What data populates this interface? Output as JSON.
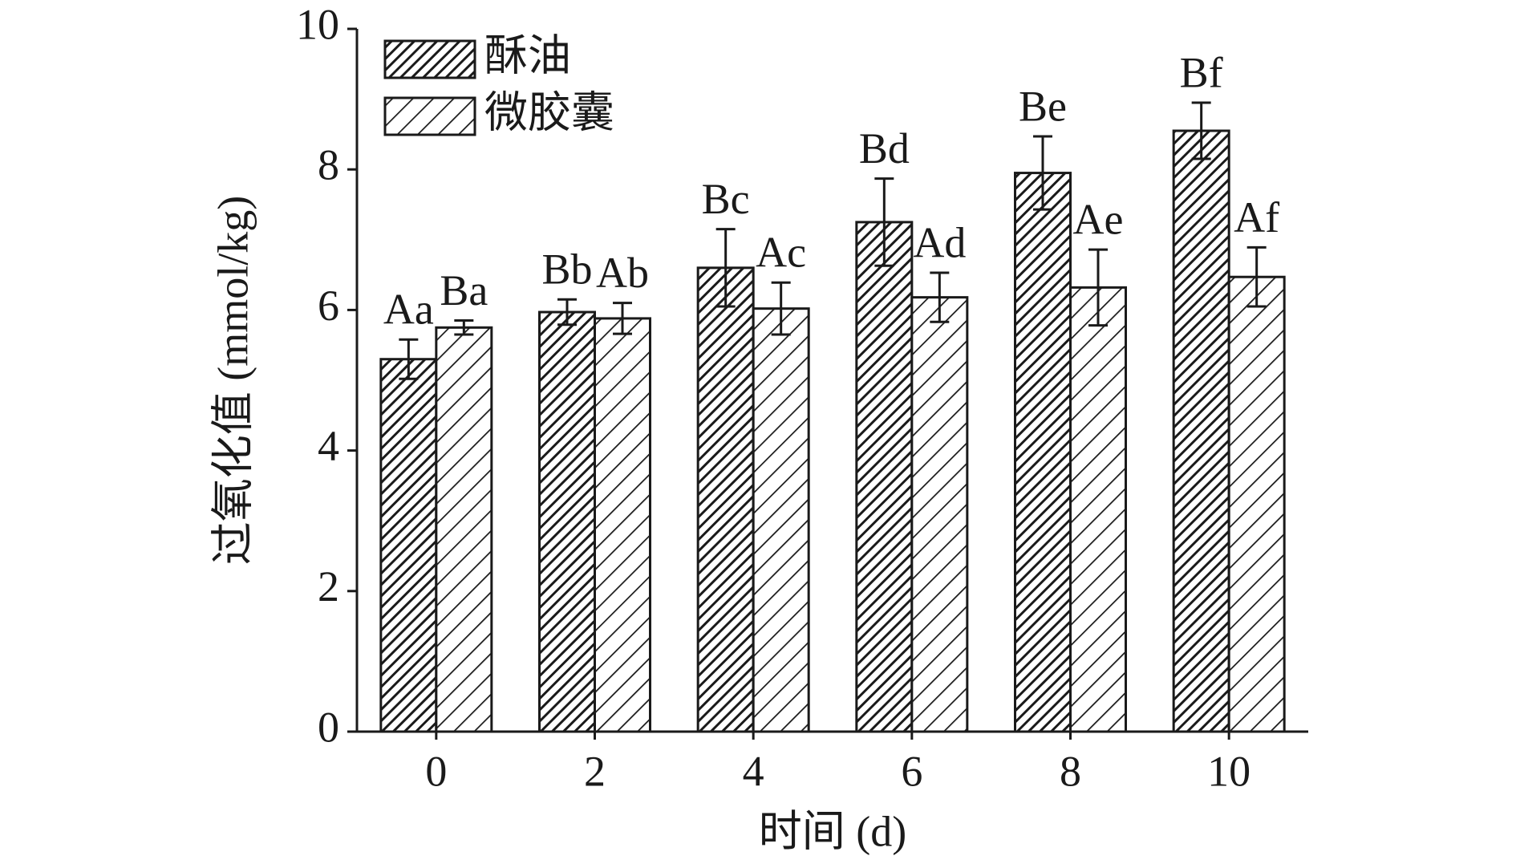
{
  "chart_data": {
    "type": "bar",
    "x_label": "时间 (d)",
    "y_label": "过氧化值 (mmol/kg)",
    "categories": [
      "0",
      "2",
      "4",
      "6",
      "8",
      "10"
    ],
    "series": [
      {
        "name": "酥油",
        "color": "#1a1a1a",
        "values": [
          5.3,
          5.97,
          6.6,
          7.25,
          7.95,
          8.55
        ],
        "errors": [
          0.28,
          0.18,
          0.55,
          0.62,
          0.52,
          0.4
        ],
        "labels": [
          "Aa",
          "Bb",
          "Bc",
          "Bd",
          "Be",
          "Bf"
        ]
      },
      {
        "name": "微胶囊",
        "color": "#1a1a1a",
        "values": [
          5.75,
          5.88,
          6.02,
          6.18,
          6.32,
          6.47
        ],
        "errors": [
          0.1,
          0.22,
          0.37,
          0.35,
          0.54,
          0.42
        ],
        "labels": [
          "Ba",
          "Ab",
          "Ac",
          "Ad",
          "Ae",
          "Af"
        ]
      }
    ],
    "ylim": [
      0,
      10
    ],
    "yticks": [
      0,
      2,
      4,
      6,
      8,
      10
    ],
    "legend": "upper left"
  }
}
